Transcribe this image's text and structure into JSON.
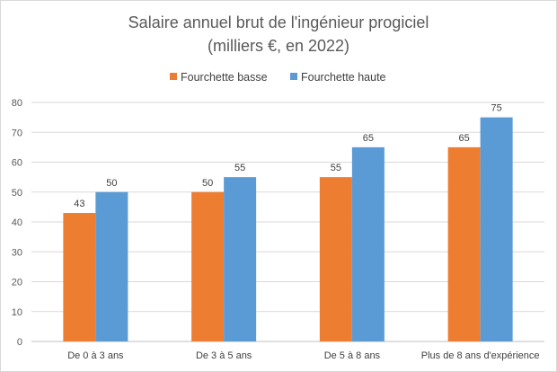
{
  "chart_data": {
    "type": "bar",
    "title_line1": "Salaire annuel brut de l'ingénieur progiciel",
    "title_line2": "(milliers €, en 2022)",
    "categories": [
      "De 0 à 3 ans",
      "De 3 à 5 ans",
      "De 5 à 8 ans",
      "Plus de 8 ans d'expérience"
    ],
    "series": [
      {
        "name": "Fourchette basse",
        "color": "#ed7d31",
        "values": [
          43,
          50,
          55,
          65
        ]
      },
      {
        "name": "Fourchette haute",
        "color": "#5b9bd5",
        "values": [
          50,
          55,
          65,
          75
        ]
      }
    ],
    "ylim": [
      0,
      80
    ],
    "yticks": [
      0,
      10,
      20,
      30,
      40,
      50,
      60,
      70,
      80
    ],
    "grid": true,
    "legend_position": "top"
  }
}
